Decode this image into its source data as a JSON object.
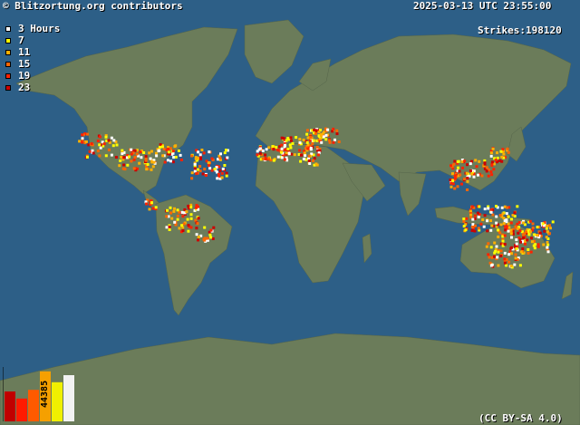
{
  "header": {
    "title": "© Blitzortung.org contributors",
    "datetime": "2025-03-13 UTC 23:55:00",
    "strikes": "Strikes:198120"
  },
  "legend": [
    {
      "label": "3 Hours",
      "color": "#ffffff"
    },
    {
      "label": "7",
      "color": "#ffff00"
    },
    {
      "label": "11",
      "color": "#ffb000"
    },
    {
      "label": "15",
      "color": "#ff6600"
    },
    {
      "label": "19",
      "color": "#ff2200"
    },
    {
      "label": "23",
      "color": "#cc0000"
    }
  ],
  "histogram": {
    "label": "44385",
    "bars": [
      {
        "value": 0.55,
        "color": "#c00000"
      },
      {
        "value": 0.42,
        "color": "#ff1a00"
      },
      {
        "value": 0.58,
        "color": "#ff5a00"
      },
      {
        "value": 0.92,
        "color": "#f5a000"
      },
      {
        "value": 0.72,
        "color": "#f0f000"
      },
      {
        "value": 0.85,
        "color": "#f2f2f2"
      }
    ]
  },
  "license": "(CC BY-SA 4.0)",
  "colors": {
    "ocean": "#2d5f87",
    "land": "#6b7c5a"
  }
}
